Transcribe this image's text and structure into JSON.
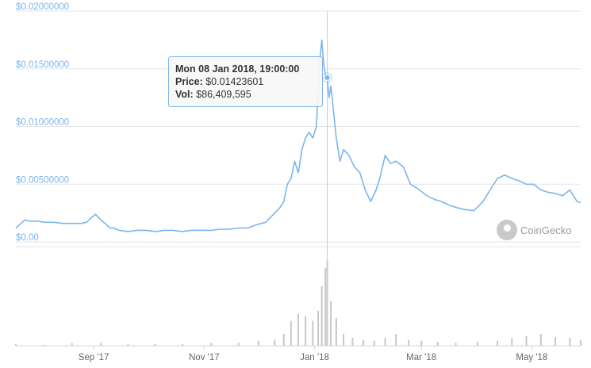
{
  "chart_data": {
    "type": "line",
    "y_ticks": [
      "$0.00",
      "$0.00500000",
      "$0.01000000",
      "$0.01500000",
      "$0.02000000"
    ],
    "ylim": [
      0,
      0.02
    ],
    "x_ticks": [
      "Sep '17",
      "Nov '17",
      "Jan '18",
      "Mar '18",
      "May '18"
    ],
    "x_tick_dates": [
      "2017-09-01",
      "2017-11-01",
      "2018-01-01",
      "2018-03-01",
      "2018-05-01"
    ],
    "xlim": [
      "2017-07-20",
      "2018-05-28"
    ],
    "grid": true,
    "series": [
      {
        "color": "#7cb5ec",
        "x": [
          "2017-07-20",
          "2017-07-22",
          "2017-07-25",
          "2017-07-28",
          "2017-08-01",
          "2017-08-05",
          "2017-08-10",
          "2017-08-15",
          "2017-08-20",
          "2017-08-25",
          "2017-08-28",
          "2017-08-30",
          "2017-09-02",
          "2017-09-05",
          "2017-09-08",
          "2017-09-10",
          "2017-09-12",
          "2017-09-15",
          "2017-09-20",
          "2017-09-25",
          "2017-09-30",
          "2017-10-05",
          "2017-10-10",
          "2017-10-15",
          "2017-10-20",
          "2017-10-25",
          "2017-10-30",
          "2017-11-05",
          "2017-11-10",
          "2017-11-15",
          "2017-11-20",
          "2017-11-25",
          "2017-11-30",
          "2017-12-05",
          "2017-12-10",
          "2017-12-13",
          "2017-12-15",
          "2017-12-17",
          "2017-12-19",
          "2017-12-21",
          "2017-12-23",
          "2017-12-25",
          "2017-12-27",
          "2017-12-29",
          "2017-12-31",
          "2018-01-02",
          "2018-01-03",
          "2018-01-04",
          "2018-01-05",
          "2018-01-06",
          "2018-01-07",
          "2018-01-08",
          "2018-01-09",
          "2018-01-10",
          "2018-01-11",
          "2018-01-13",
          "2018-01-15",
          "2018-01-17",
          "2018-01-20",
          "2018-01-23",
          "2018-01-26",
          "2018-01-29",
          "2018-02-01",
          "2018-02-04",
          "2018-02-06",
          "2018-02-09",
          "2018-02-12",
          "2018-02-15",
          "2018-02-19",
          "2018-02-23",
          "2018-02-28",
          "2018-03-04",
          "2018-03-08",
          "2018-03-12",
          "2018-03-16",
          "2018-03-20",
          "2018-03-25",
          "2018-03-30",
          "2018-04-04",
          "2018-04-08",
          "2018-04-12",
          "2018-04-16",
          "2018-04-20",
          "2018-04-24",
          "2018-04-28",
          "2018-05-02",
          "2018-05-06",
          "2018-05-10",
          "2018-05-14",
          "2018-05-18",
          "2018-05-22",
          "2018-05-26",
          "2018-05-28"
        ],
        "y": [
          0.0012,
          0.0015,
          0.0019,
          0.0018,
          0.0018,
          0.0017,
          0.0017,
          0.0016,
          0.0016,
          0.0016,
          0.0017,
          0.002,
          0.0024,
          0.0019,
          0.0015,
          0.0012,
          0.0012,
          0.001,
          0.0009,
          0.001,
          0.001,
          0.0009,
          0.001,
          0.001,
          0.0009,
          0.001,
          0.001,
          0.001,
          0.0011,
          0.0011,
          0.0012,
          0.0012,
          0.0015,
          0.0017,
          0.0025,
          0.003,
          0.0035,
          0.005,
          0.0055,
          0.007,
          0.006,
          0.008,
          0.009,
          0.0095,
          0.009,
          0.01,
          0.013,
          0.016,
          0.0175,
          0.0155,
          0.0145,
          0.0142,
          0.0125,
          0.0135,
          0.012,
          0.009,
          0.007,
          0.008,
          0.0075,
          0.0065,
          0.006,
          0.0045,
          0.0035,
          0.0045,
          0.0055,
          0.0075,
          0.0068,
          0.007,
          0.0065,
          0.005,
          0.0045,
          0.004,
          0.0037,
          0.0035,
          0.0032,
          0.003,
          0.0028,
          0.0027,
          0.0035,
          0.0045,
          0.0055,
          0.0058,
          0.0055,
          0.0053,
          0.005,
          0.005,
          0.0045,
          0.0043,
          0.0042,
          0.004,
          0.0045,
          0.0035,
          0.0034
        ]
      }
    ],
    "volume_x": [
      "2017-07-20",
      "2017-08-05",
      "2017-08-20",
      "2017-09-05",
      "2017-09-20",
      "2017-10-05",
      "2017-10-20",
      "2017-11-05",
      "2017-11-20",
      "2017-12-01",
      "2017-12-10",
      "2017-12-15",
      "2017-12-19",
      "2017-12-23",
      "2017-12-27",
      "2017-12-31",
      "2018-01-03",
      "2018-01-05",
      "2018-01-07",
      "2018-01-08",
      "2018-01-10",
      "2018-01-13",
      "2018-01-17",
      "2018-01-22",
      "2018-01-28",
      "2018-02-03",
      "2018-02-09",
      "2018-02-15",
      "2018-02-22",
      "2018-03-01",
      "2018-03-10",
      "2018-03-20",
      "2018-04-01",
      "2018-04-12",
      "2018-04-20",
      "2018-04-28",
      "2018-05-06",
      "2018-05-14",
      "2018-05-22",
      "2018-05-28"
    ],
    "volume_y": [
      2,
      1,
      3,
      3,
      2,
      2,
      2,
      3,
      3,
      5,
      6,
      12,
      25,
      32,
      30,
      25,
      35,
      60,
      78,
      86,
      45,
      28,
      12,
      8,
      6,
      5,
      8,
      12,
      6,
      5,
      4,
      3,
      4,
      5,
      8,
      10,
      12,
      9,
      8,
      6
    ],
    "tooltip": {
      "title": "Mon 08 Jan 2018, 19:00:00",
      "price_label": "Price:",
      "price": "$0.01423601",
      "vol_label": "Vol:",
      "vol": "$86,409,595",
      "x": "2018-01-08",
      "y": 0.01423601
    }
  },
  "watermark": {
    "text": "CoinGecko",
    "icon": "coingecko-logo"
  }
}
